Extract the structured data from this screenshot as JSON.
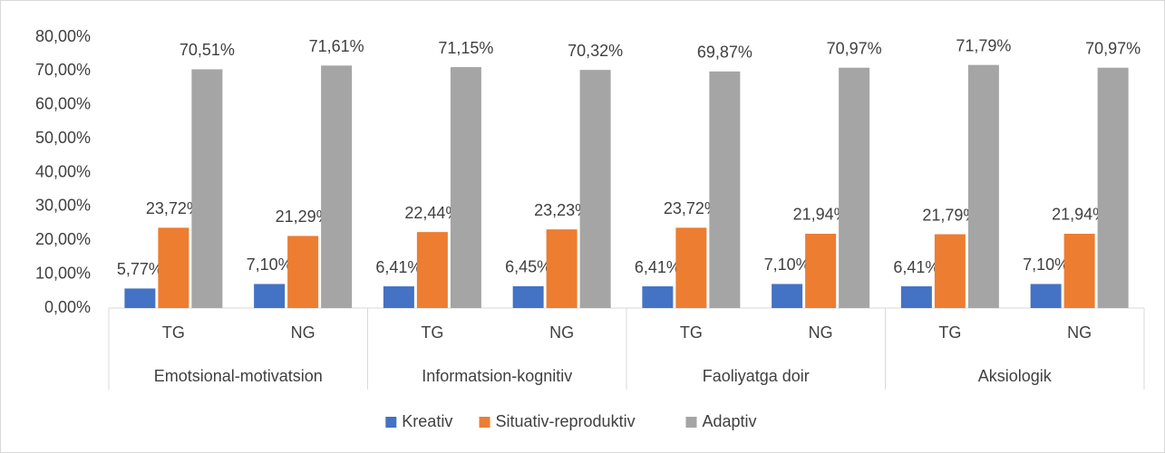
{
  "chart_data": {
    "type": "bar",
    "categories": [
      "TG",
      "NG",
      "TG",
      "NG",
      "TG",
      "NG",
      "TG",
      "NG"
    ],
    "category_groups": [
      "Emotsional-motivatsion",
      "Informatsion-kognitiv",
      "Faoliyatga doir",
      "Aksiologik"
    ],
    "series": [
      {
        "name": "Kreativ",
        "color": "#4472c4",
        "values": [
          5.77,
          7.1,
          6.41,
          6.45,
          6.41,
          7.1,
          6.41,
          7.1
        ],
        "value_labels": [
          "5,77%",
          "7,10%",
          "6,41%",
          "6,45%",
          "6,41%",
          "7,10%",
          "6,41%",
          "7,10%"
        ]
      },
      {
        "name": "Situativ-reproduktiv",
        "color": "#ed7d31",
        "values": [
          23.72,
          21.29,
          22.44,
          23.23,
          23.72,
          21.94,
          21.79,
          21.94
        ],
        "value_labels": [
          "23,72%",
          "21,29%",
          "22,44%",
          "23,23%",
          "23,72%",
          "21,94%",
          "21,79%",
          "21,94%"
        ]
      },
      {
        "name": "Adaptiv",
        "color": "#a5a5a5",
        "values": [
          70.51,
          71.61,
          71.15,
          70.32,
          69.87,
          70.97,
          71.79,
          70.97
        ],
        "value_labels": [
          "70,51%",
          "71,61%",
          "71,15%",
          "70,32%",
          "69,87%",
          "70,97%",
          "71,79%",
          "70,97%"
        ]
      }
    ],
    "ylim": [
      0,
      80
    ],
    "yticks": [
      {
        "value": 0,
        "label": "0,00%"
      },
      {
        "value": 10,
        "label": "10,00%"
      },
      {
        "value": 20,
        "label": "20,00%"
      },
      {
        "value": 30,
        "label": "30,00%"
      },
      {
        "value": 40,
        "label": "40,00%"
      },
      {
        "value": 50,
        "label": "50,00%"
      },
      {
        "value": 60,
        "label": "60,00%"
      },
      {
        "value": 70,
        "label": "70,00%"
      },
      {
        "value": 80,
        "label": "80,00%"
      }
    ],
    "grid": false,
    "legend": "bottom"
  }
}
